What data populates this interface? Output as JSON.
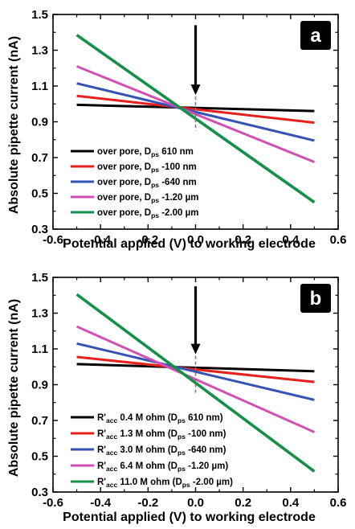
{
  "chart_data": [
    {
      "type": "line",
      "panel_label": "a",
      "xlabel": "Potential applied (V) to working electrode",
      "ylabel": "Absolute pipette current (nA)",
      "xlim": [
        -0.6,
        0.6
      ],
      "ylim": [
        0.3,
        1.5
      ],
      "xticks": [
        "-0.6",
        "-0.4",
        "-0.2",
        "0.0",
        "0.2",
        "0.4",
        "0.6"
      ],
      "yticks": [
        "0.3",
        "0.5",
        "0.7",
        "0.9",
        "1.1",
        "1.3",
        "1.5"
      ],
      "legend_position": "bottom-left",
      "marker": {
        "x": 0.0,
        "arrow_top_y": 1.44,
        "arrow_bottom_y": 1.05,
        "dash_bottom_y": 0.85
      },
      "series": [
        {
          "name": "over pore, D",
          "sub": "ps",
          "value": " 610 nm",
          "color": "#000000",
          "x": [
            -0.5,
            0.5
          ],
          "y": [
            0.995,
            0.96
          ]
        },
        {
          "name": "over pore, D",
          "sub": "ps",
          "value": " -100 nm",
          "color": "#e8201c",
          "x": [
            -0.5,
            0.5
          ],
          "y": [
            1.045,
            0.895
          ]
        },
        {
          "name": "over pore, D",
          "sub": "ps",
          "value": " -640 nm",
          "color": "#3553b5",
          "x": [
            -0.5,
            0.5
          ],
          "y": [
            1.115,
            0.795
          ]
        },
        {
          "name": "over pore, D",
          "sub": "ps",
          "value": " -1.20 µm",
          "color": "#d24fb4",
          "x": [
            -0.5,
            0.5
          ],
          "y": [
            1.21,
            0.675
          ]
        },
        {
          "name": "over pore, D",
          "sub": "ps",
          "value": " -2.00 µm",
          "color": "#14904a",
          "x": [
            -0.5,
            0.5
          ],
          "y": [
            1.385,
            0.45
          ]
        }
      ]
    },
    {
      "type": "line",
      "panel_label": "b",
      "xlabel": "Potential applied (V) to working electrode",
      "ylabel": "Absolute pipette current (nA)",
      "xlim": [
        -0.6,
        0.6
      ],
      "ylim": [
        0.3,
        1.5
      ],
      "xticks": [
        "-0.6",
        "-0.4",
        "-0.2",
        "0.0",
        "0.2",
        "0.4",
        "0.6"
      ],
      "yticks": [
        "0.3",
        "0.5",
        "0.7",
        "0.9",
        "1.1",
        "1.3",
        "1.5"
      ],
      "legend_position": "bottom-left",
      "marker": {
        "x": 0.0,
        "arrow_top_y": 1.45,
        "arrow_bottom_y": 1.07,
        "dash_bottom_y": 0.85
      },
      "series": [
        {
          "name": "R'",
          "sub": "acc",
          "value": " 0.4 M ohm (D",
          "sub2": "ps",
          "value2": " 610 nm)",
          "color": "#000000",
          "x": [
            -0.5,
            0.5
          ],
          "y": [
            1.015,
            0.975
          ]
        },
        {
          "name": "R'",
          "sub": "acc",
          "value": " 1.3 M ohm (D",
          "sub2": "ps",
          "value2": " -100 nm)",
          "color": "#e8201c",
          "x": [
            -0.5,
            0.5
          ],
          "y": [
            1.055,
            0.915
          ]
        },
        {
          "name": "R'",
          "sub": "acc",
          "value": " 3.0 M ohm (D",
          "sub2": "ps",
          "value2": " -640 nm)",
          "color": "#3553b5",
          "x": [
            -0.5,
            0.5
          ],
          "y": [
            1.13,
            0.815
          ]
        },
        {
          "name": "R'",
          "sub": "acc",
          "value": " 6.4 M ohm (D",
          "sub2": "ps",
          "value2": " -1.20 µm)",
          "color": "#d24fb4",
          "x": [
            -0.5,
            0.5
          ],
          "y": [
            1.225,
            0.635
          ]
        },
        {
          "name": "R'",
          "sub": "acc",
          "value": " 11.0 M ohm (D",
          "sub2": "ps",
          "value2": " -2.00 µm)",
          "color": "#14904a",
          "x": [
            -0.5,
            0.5
          ],
          "y": [
            1.405,
            0.415
          ]
        }
      ]
    }
  ]
}
